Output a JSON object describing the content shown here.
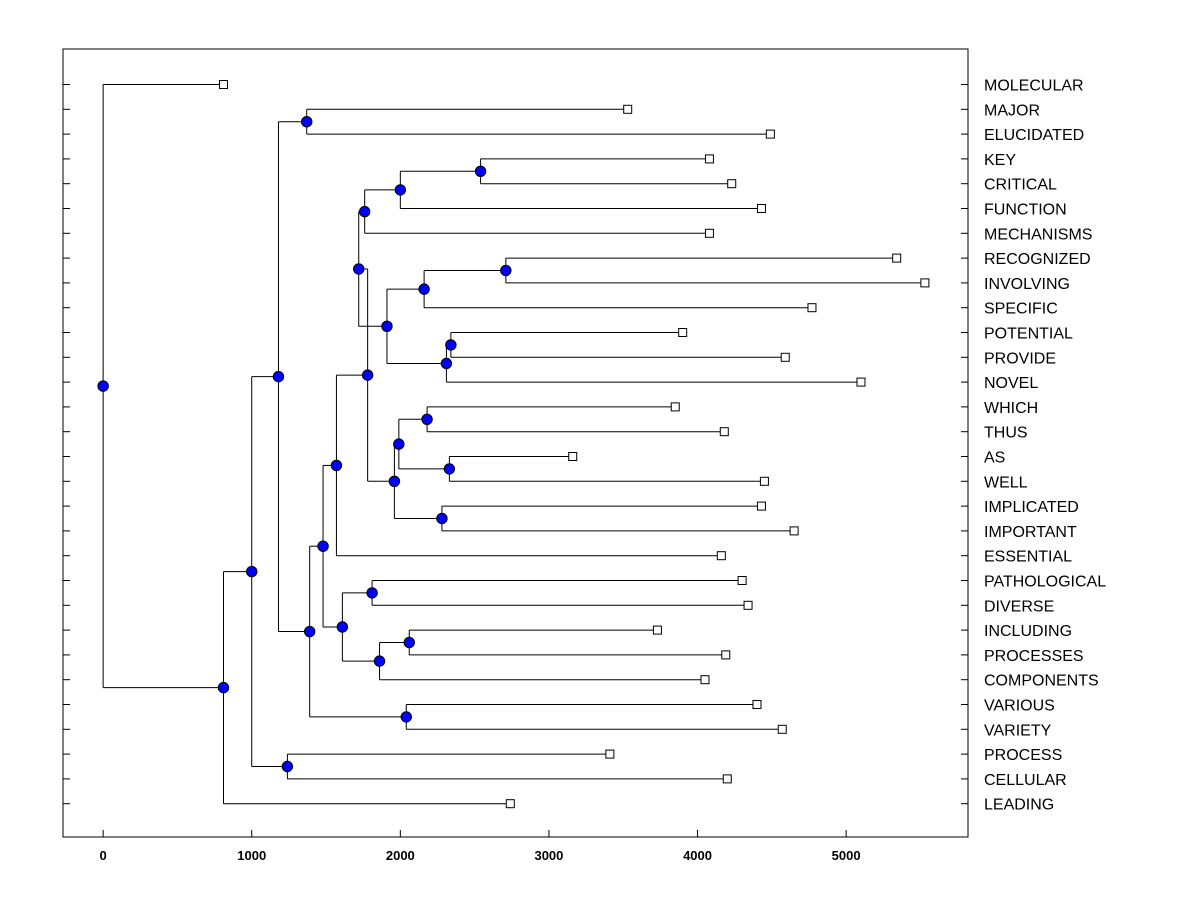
{
  "chart_data": {
    "type": "dendrogram",
    "title": "",
    "xlabel": "",
    "ylabel": "",
    "xlim": [
      -270,
      5820
    ],
    "xticks": [
      0,
      1000,
      2000,
      3000,
      4000,
      5000
    ],
    "xtick_labels": [
      "0",
      "1000",
      "2000",
      "3000",
      "4000",
      "5000"
    ],
    "grid": false,
    "legend": "none",
    "node_color": "#0000ff",
    "leaf_marker_color": "#ffffff",
    "leaves": [
      {
        "id": "L1",
        "label": "MOLECULAR",
        "x": 810
      },
      {
        "id": "L2",
        "label": "MAJOR",
        "x": 3530
      },
      {
        "id": "L3",
        "label": "ELUCIDATED",
        "x": 4490
      },
      {
        "id": "L4",
        "label": "KEY",
        "x": 4080
      },
      {
        "id": "L5",
        "label": "CRITICAL",
        "x": 4230
      },
      {
        "id": "L6",
        "label": "FUNCTION",
        "x": 4430
      },
      {
        "id": "L7",
        "label": "MECHANISMS",
        "x": 4080
      },
      {
        "id": "L8",
        "label": "RECOGNIZED",
        "x": 5340
      },
      {
        "id": "L9",
        "label": "INVOLVING",
        "x": 5530
      },
      {
        "id": "L10",
        "label": "SPECIFIC",
        "x": 4770
      },
      {
        "id": "L11",
        "label": "POTENTIAL",
        "x": 3900
      },
      {
        "id": "L12",
        "label": "PROVIDE",
        "x": 4590
      },
      {
        "id": "L13",
        "label": "NOVEL",
        "x": 5100
      },
      {
        "id": "L14",
        "label": "WHICH",
        "x": 3850
      },
      {
        "id": "L15",
        "label": "THUS",
        "x": 4180
      },
      {
        "id": "L16",
        "label": "AS",
        "x": 3160
      },
      {
        "id": "L17",
        "label": "WELL",
        "x": 4450
      },
      {
        "id": "L18",
        "label": "IMPLICATED",
        "x": 4430
      },
      {
        "id": "L19",
        "label": "IMPORTANT",
        "x": 4650
      },
      {
        "id": "L20",
        "label": "ESSENTIAL",
        "x": 4160
      },
      {
        "id": "L21",
        "label": "PATHOLOGICAL",
        "x": 4300
      },
      {
        "id": "L22",
        "label": "DIVERSE",
        "x": 4340
      },
      {
        "id": "L23",
        "label": "INCLUDING",
        "x": 3730
      },
      {
        "id": "L24",
        "label": "PROCESSES",
        "x": 4190
      },
      {
        "id": "L25",
        "label": "COMPONENTS",
        "x": 4050
      },
      {
        "id": "L26",
        "label": "VARIOUS",
        "x": 4400
      },
      {
        "id": "L27",
        "label": "VARIETY",
        "x": 4570
      },
      {
        "id": "L28",
        "label": "PROCESS",
        "x": 3410
      },
      {
        "id": "L29",
        "label": "CELLULAR",
        "x": 4200
      },
      {
        "id": "L30",
        "label": "LEADING",
        "x": 2740
      }
    ],
    "nodes": [
      {
        "id": "n_major_eluc",
        "x": 1370,
        "children": [
          "L2",
          "L3"
        ]
      },
      {
        "id": "n_key_crit",
        "x": 2540,
        "children": [
          "L4",
          "L5"
        ]
      },
      {
        "id": "n_keycrit_func",
        "x": 2000,
        "children": [
          "n_key_crit",
          "L6"
        ]
      },
      {
        "id": "n_func_mech",
        "x": 1760,
        "children": [
          "n_keycrit_func",
          "L7"
        ]
      },
      {
        "id": "n_recog_inv",
        "x": 2710,
        "children": [
          "L8",
          "L9"
        ]
      },
      {
        "id": "n_ri_spec",
        "x": 2160,
        "children": [
          "n_recog_inv",
          "L10"
        ]
      },
      {
        "id": "n_pot_prov",
        "x": 2340,
        "children": [
          "L11",
          "L12"
        ]
      },
      {
        "id": "n_pp_novel",
        "x": 2310,
        "children": [
          "n_pot_prov",
          "L13"
        ]
      },
      {
        "id": "n_spec_novel",
        "x": 1910,
        "children": [
          "n_ri_spec",
          "n_pp_novel"
        ]
      },
      {
        "id": "n_mech_novel",
        "x": 1720,
        "children": [
          "n_func_mech",
          "n_spec_novel"
        ]
      },
      {
        "id": "n_which_thus",
        "x": 2180,
        "children": [
          "L14",
          "L15"
        ]
      },
      {
        "id": "n_as_well",
        "x": 2330,
        "children": [
          "L16",
          "L17"
        ]
      },
      {
        "id": "n_wt_aw",
        "x": 1990,
        "children": [
          "n_which_thus",
          "n_as_well"
        ]
      },
      {
        "id": "n_impl_imp",
        "x": 2280,
        "children": [
          "L18",
          "L19"
        ]
      },
      {
        "id": "n_wtaw_ii",
        "x": 1960,
        "children": [
          "n_wt_aw",
          "n_impl_imp"
        ]
      },
      {
        "id": "n_mid",
        "x": 1780,
        "children": [
          "n_mech_novel",
          "n_wtaw_ii"
        ]
      },
      {
        "id": "n_mid_ess",
        "x": 1570,
        "children": [
          "n_mid",
          "L20"
        ]
      },
      {
        "id": "n_path_div",
        "x": 1810,
        "children": [
          "L21",
          "L22"
        ]
      },
      {
        "id": "n_inc_proc",
        "x": 2060,
        "children": [
          "L23",
          "L24"
        ]
      },
      {
        "id": "n_ip_comp",
        "x": 1860,
        "children": [
          "n_inc_proc",
          "L25"
        ]
      },
      {
        "id": "n_pd_ipc",
        "x": 1610,
        "children": [
          "n_path_div",
          "n_ip_comp"
        ]
      },
      {
        "id": "n_ess_pd",
        "x": 1480,
        "children": [
          "n_mid_ess",
          "n_pd_ipc"
        ]
      },
      {
        "id": "n_var_var",
        "x": 2040,
        "children": [
          "L26",
          "L27"
        ]
      },
      {
        "id": "n_big_var",
        "x": 1390,
        "children": [
          "n_ess_pd",
          "n_var_var"
        ]
      },
      {
        "id": "n_top_big",
        "x": 1180,
        "children": [
          "n_major_eluc",
          "n_big_var"
        ]
      },
      {
        "id": "n_proc_cell",
        "x": 1240,
        "children": [
          "L28",
          "L29"
        ]
      },
      {
        "id": "n_tb_pc",
        "x": 1000,
        "children": [
          "n_top_big",
          "n_proc_cell"
        ]
      },
      {
        "id": "n_all_lead",
        "x": 810,
        "children": [
          "n_tb_pc",
          "L30"
        ]
      },
      {
        "id": "n_root",
        "x": 0,
        "children": [
          "L1",
          "n_all_lead"
        ]
      }
    ]
  }
}
